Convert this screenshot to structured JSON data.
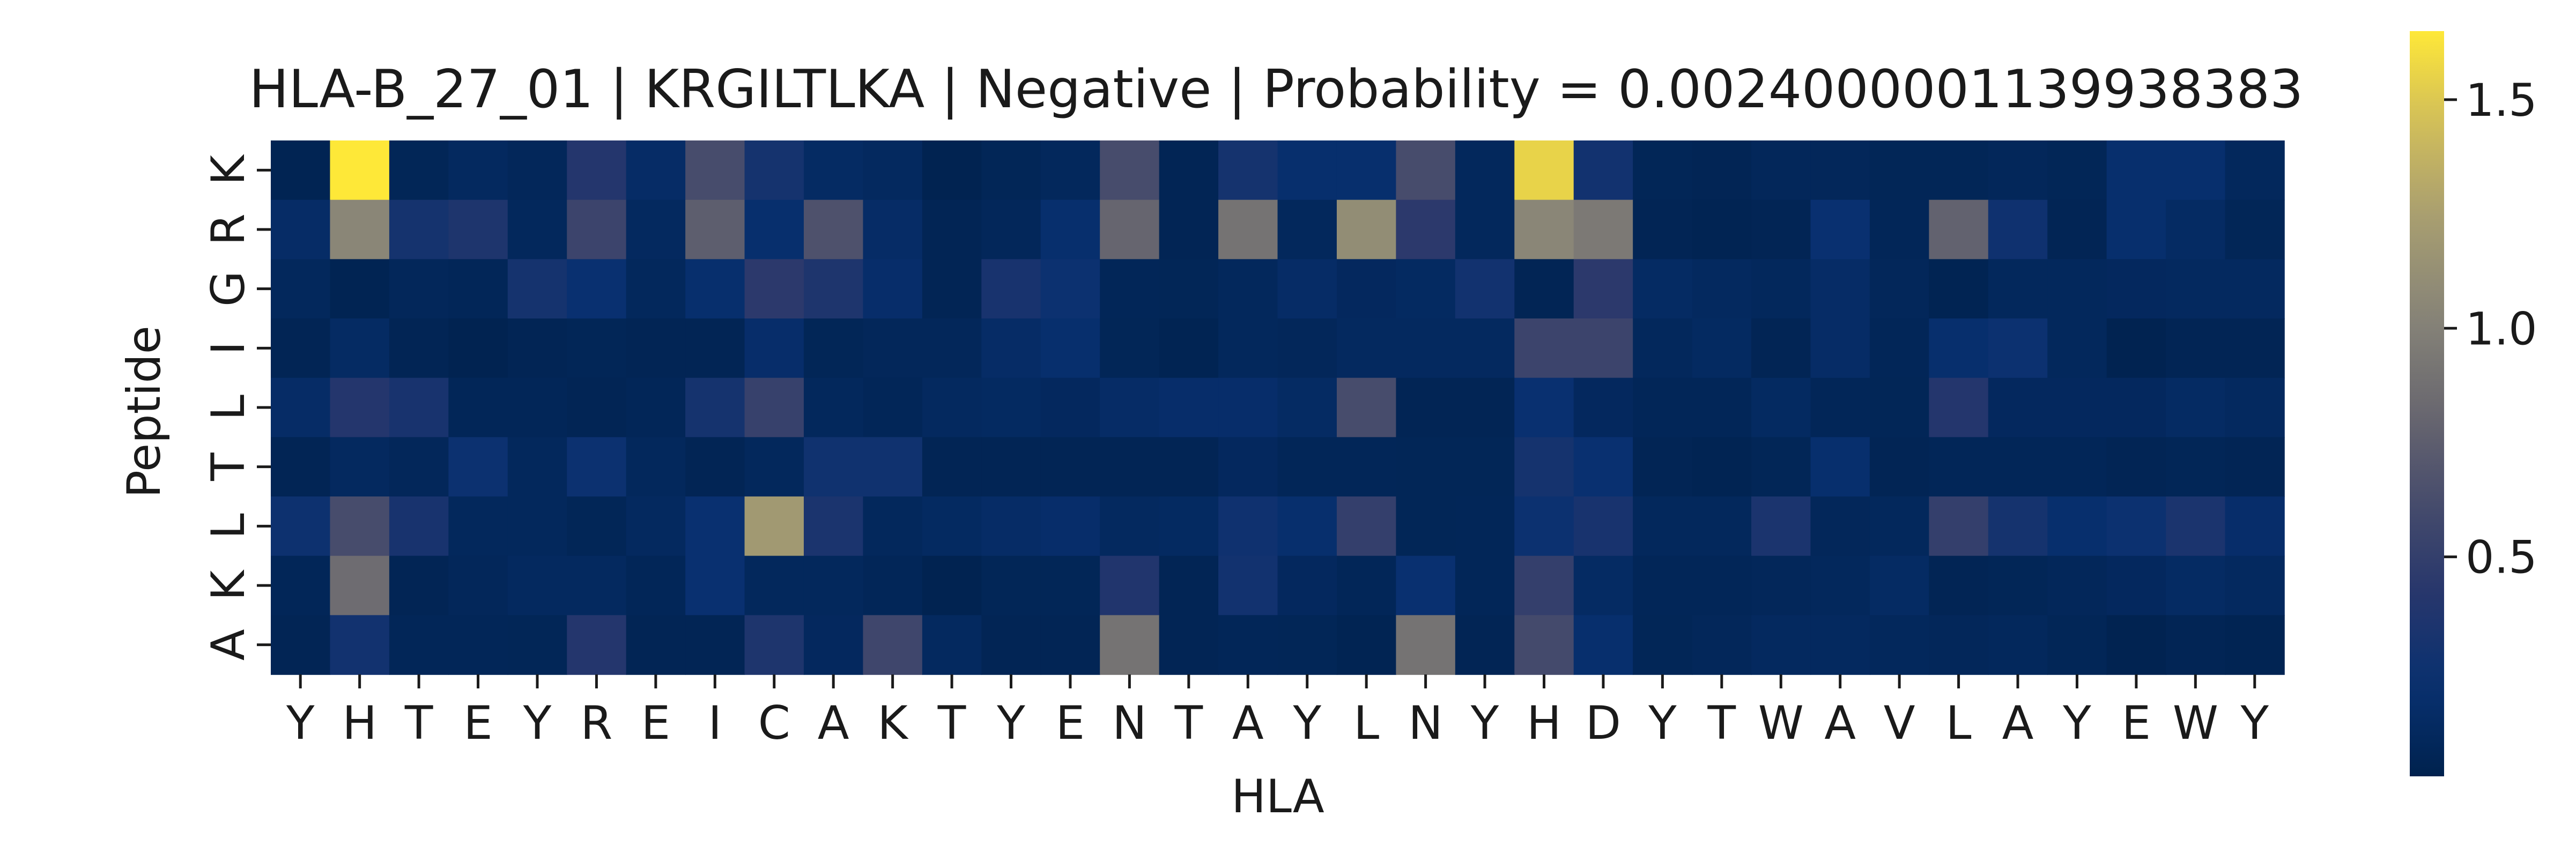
{
  "chart_data": {
    "type": "heatmap",
    "title": "HLA-B_27_01 | KRGILTLKA | Negative | Probability = 0.0024000001139938383",
    "xlabel": "HLA",
    "ylabel": "Peptide",
    "x_ticks": [
      "Y",
      "H",
      "T",
      "E",
      "Y",
      "R",
      "E",
      "I",
      "C",
      "A",
      "K",
      "T",
      "Y",
      "E",
      "N",
      "T",
      "A",
      "Y",
      "L",
      "N",
      "Y",
      "H",
      "D",
      "Y",
      "T",
      "W",
      "A",
      "V",
      "L",
      "A",
      "Y",
      "E",
      "W",
      "Y"
    ],
    "y_ticks": [
      "K",
      "R",
      "G",
      "I",
      "L",
      "T",
      "L",
      "K",
      "A"
    ],
    "colormap": "cividis",
    "vmin": 0.02,
    "vmax": 1.65,
    "colorbar_ticks": [
      0.5,
      1.0,
      1.5
    ],
    "colorbar_tick_labels": [
      "0.5",
      "1.0",
      "1.5"
    ],
    "values": [
      [
        0.05,
        1.65,
        0.07,
        0.12,
        0.09,
        0.4,
        0.16,
        0.62,
        0.3,
        0.14,
        0.12,
        0.04,
        0.07,
        0.1,
        0.62,
        0.06,
        0.3,
        0.2,
        0.2,
        0.62,
        0.1,
        1.55,
        0.28,
        0.07,
        0.06,
        0.09,
        0.09,
        0.07,
        0.07,
        0.09,
        0.07,
        0.2,
        0.2,
        0.1
      ],
      [
        0.16,
        1.05,
        0.3,
        0.36,
        0.1,
        0.55,
        0.12,
        0.75,
        0.2,
        0.66,
        0.16,
        0.06,
        0.09,
        0.2,
        0.8,
        0.06,
        0.9,
        0.1,
        1.1,
        0.45,
        0.1,
        1.05,
        0.95,
        0.06,
        0.05,
        0.06,
        0.22,
        0.08,
        0.78,
        0.26,
        0.06,
        0.2,
        0.14,
        0.07
      ],
      [
        0.1,
        0.05,
        0.09,
        0.08,
        0.3,
        0.22,
        0.1,
        0.2,
        0.45,
        0.36,
        0.18,
        0.06,
        0.32,
        0.24,
        0.08,
        0.07,
        0.1,
        0.16,
        0.11,
        0.13,
        0.28,
        0.06,
        0.45,
        0.14,
        0.12,
        0.1,
        0.16,
        0.09,
        0.05,
        0.1,
        0.1,
        0.11,
        0.12,
        0.12
      ],
      [
        0.06,
        0.14,
        0.06,
        0.04,
        0.06,
        0.07,
        0.06,
        0.06,
        0.18,
        0.07,
        0.09,
        0.09,
        0.16,
        0.2,
        0.07,
        0.05,
        0.1,
        0.09,
        0.12,
        0.12,
        0.12,
        0.55,
        0.55,
        0.1,
        0.13,
        0.06,
        0.16,
        0.08,
        0.2,
        0.24,
        0.1,
        0.04,
        0.06,
        0.06
      ],
      [
        0.16,
        0.4,
        0.32,
        0.08,
        0.08,
        0.06,
        0.08,
        0.3,
        0.52,
        0.1,
        0.08,
        0.12,
        0.13,
        0.11,
        0.16,
        0.18,
        0.18,
        0.14,
        0.62,
        0.06,
        0.06,
        0.22,
        0.11,
        0.08,
        0.08,
        0.13,
        0.08,
        0.07,
        0.4,
        0.11,
        0.11,
        0.11,
        0.14,
        0.12
      ],
      [
        0.06,
        0.12,
        0.09,
        0.24,
        0.1,
        0.24,
        0.1,
        0.06,
        0.1,
        0.27,
        0.27,
        0.06,
        0.06,
        0.06,
        0.06,
        0.06,
        0.11,
        0.08,
        0.08,
        0.07,
        0.07,
        0.3,
        0.22,
        0.06,
        0.05,
        0.07,
        0.2,
        0.06,
        0.08,
        0.08,
        0.08,
        0.06,
        0.07,
        0.06
      ],
      [
        0.25,
        0.62,
        0.32,
        0.1,
        0.1,
        0.07,
        0.12,
        0.22,
        1.2,
        0.34,
        0.1,
        0.13,
        0.16,
        0.18,
        0.12,
        0.13,
        0.26,
        0.2,
        0.5,
        0.07,
        0.08,
        0.24,
        0.32,
        0.1,
        0.1,
        0.34,
        0.09,
        0.1,
        0.5,
        0.3,
        0.2,
        0.24,
        0.34,
        0.18
      ],
      [
        0.08,
        0.85,
        0.06,
        0.09,
        0.12,
        0.12,
        0.08,
        0.22,
        0.1,
        0.1,
        0.08,
        0.04,
        0.07,
        0.07,
        0.38,
        0.06,
        0.28,
        0.11,
        0.08,
        0.22,
        0.08,
        0.5,
        0.14,
        0.08,
        0.08,
        0.09,
        0.1,
        0.14,
        0.06,
        0.07,
        0.09,
        0.11,
        0.14,
        0.12
      ],
      [
        0.06,
        0.28,
        0.08,
        0.08,
        0.07,
        0.4,
        0.06,
        0.06,
        0.36,
        0.11,
        0.57,
        0.12,
        0.06,
        0.06,
        0.9,
        0.06,
        0.08,
        0.07,
        0.05,
        0.9,
        0.06,
        0.6,
        0.2,
        0.07,
        0.09,
        0.12,
        0.12,
        0.1,
        0.09,
        0.1,
        0.07,
        0.04,
        0.06,
        0.05
      ]
    ]
  }
}
